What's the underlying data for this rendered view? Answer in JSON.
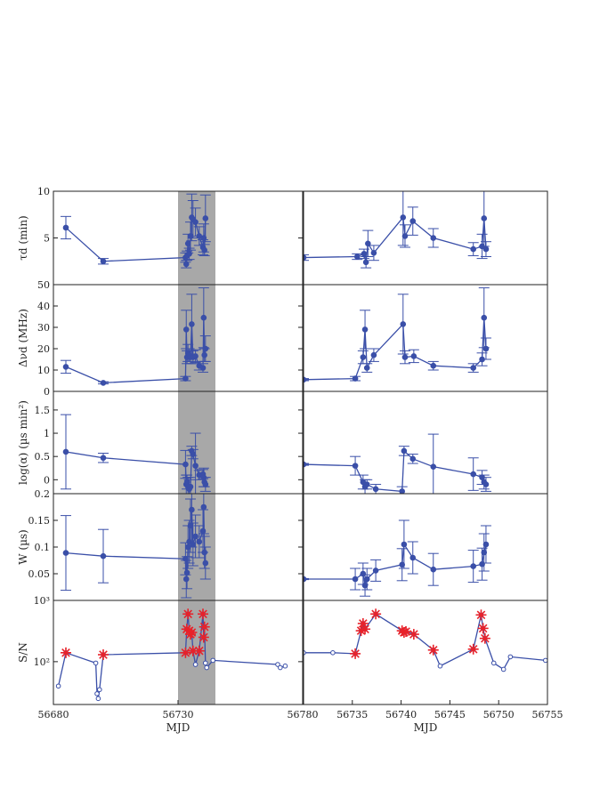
{
  "chart_data": [
    {
      "type": "line",
      "panel": "tau_d",
      "column": "left",
      "ylabel": "τd (min)",
      "ylim": [
        0,
        10
      ],
      "yticks": [
        "5",
        "10"
      ],
      "xlim": [
        56680,
        56780
      ],
      "highlight_x": [
        56730,
        56745
      ],
      "series": [
        {
          "x": [
            56685,
            56700,
            56733,
            56733.3,
            56733.6,
            56734,
            56734.5,
            56735,
            56735.5,
            56736,
            56737,
            56738.5,
            56740,
            56740.3,
            56740.6,
            56741
          ],
          "y": [
            6.1,
            2.5,
            2.9,
            2.2,
            3.1,
            4.4,
            3.3,
            5.2,
            7.2,
            7.0,
            6.7,
            5.2,
            4.0,
            5.0,
            3.7,
            7.1
          ],
          "err": [
            1.2,
            0.3,
            0.5,
            0.4,
            0.5,
            1.0,
            0.6,
            1.5,
            2.5,
            2.0,
            1.5,
            1.0,
            0.8,
            1.5,
            0.6,
            2.5
          ]
        }
      ]
    },
    {
      "type": "line",
      "panel": "delta_nu_d",
      "column": "left",
      "ylabel": "Δνd (MHz)",
      "ylim": [
        0,
        50
      ],
      "yticks": [
        "0",
        "10",
        "20",
        "30",
        "40",
        "50"
      ],
      "xlim": [
        56680,
        56780
      ],
      "series": [
        {
          "x": [
            56685,
            56700,
            56733,
            56733.3,
            56733.6,
            56734,
            56734.5,
            56735,
            56735.5,
            56736,
            56737,
            56738.5,
            56740,
            56740.3,
            56740.6,
            56741
          ],
          "y": [
            11.5,
            4,
            6,
            29,
            16,
            18,
            17,
            16,
            31.5,
            16,
            16.5,
            12,
            11,
            34.5,
            17,
            20
          ],
          "err": [
            3,
            0.5,
            1,
            9,
            3,
            4,
            3,
            3,
            14,
            3,
            3,
            2,
            2,
            14,
            3,
            6
          ]
        }
      ]
    },
    {
      "type": "line",
      "panel": "log_alpha",
      "column": "left",
      "ylabel": "log(α) (µs min²)",
      "ylim": [
        -0.3,
        1.9
      ],
      "yticks": [
        "0",
        "0.5",
        "1",
        "1.5"
      ],
      "xlim": [
        56680,
        56780
      ],
      "series": [
        {
          "x": [
            56685,
            56700,
            56733,
            56733.3,
            56733.6,
            56734,
            56734.5,
            56735,
            56735.5,
            56736,
            56737,
            56738.5,
            56740,
            56740.3,
            56740.6,
            56741
          ],
          "y": [
            0.6,
            0.47,
            0.33,
            -0.1,
            -0.05,
            -0.15,
            -0.2,
            -0.15,
            0.62,
            0.55,
            0.3,
            0.1,
            0.12,
            0.05,
            -0.05,
            -0.1
          ],
          "err": [
            0.8,
            0.1,
            0.3,
            0.2,
            0.15,
            0.2,
            0.2,
            0.2,
            0.1,
            0.1,
            0.7,
            0.1,
            0.1,
            0.2,
            0.1,
            0.15
          ]
        }
      ]
    },
    {
      "type": "line",
      "panel": "W",
      "column": "left",
      "ylabel": "W (µs)",
      "ylim": [
        0,
        0.2
      ],
      "yticks": [
        "0.05",
        "0.1",
        "0.15",
        "0.2"
      ],
      "xlim": [
        56680,
        56780
      ],
      "series": [
        {
          "x": [
            56685,
            56700,
            56733,
            56733.3,
            56733.6,
            56734,
            56734.5,
            56735,
            56735.5,
            56736,
            56737,
            56738.5,
            56740,
            56740.3,
            56740.6,
            56741
          ],
          "y": [
            0.089,
            0.083,
            0.078,
            0.04,
            0.052,
            0.1,
            0.11,
            0.14,
            0.17,
            0.105,
            0.12,
            0.11,
            0.13,
            0.175,
            0.09,
            0.07
          ],
          "err": [
            0.07,
            0.05,
            0.03,
            0.035,
            0.03,
            0.04,
            0.04,
            0.05,
            0.07,
            0.04,
            0.04,
            0.03,
            0.04,
            0.05,
            0.03,
            0.03
          ]
        }
      ]
    },
    {
      "type": "line",
      "panel": "S_N",
      "column": "left",
      "xlabel": "MJD",
      "ylabel": "S/N",
      "ylog": true,
      "ylim": [
        20,
        1000
      ],
      "yticks": [
        "10²",
        "10³"
      ],
      "xlim": [
        56680,
        56780
      ],
      "xticks": [
        "56680",
        "56730",
        "56780"
      ],
      "series": [
        {
          "name": "all",
          "x": [
            56682,
            56685,
            56697,
            56697.5,
            56698,
            56698.5,
            56700,
            56733,
            56733.5,
            56734,
            56734.5,
            56735,
            56735.5,
            56736,
            56737,
            56738.5,
            56740,
            56740.3,
            56740.6,
            56741,
            56741.5,
            56744,
            56770,
            56771,
            56773
          ],
          "y": [
            40,
            140,
            95,
            30,
            25,
            35,
            130,
            140,
            340,
            600,
            320,
            280,
            300,
            150,
            90,
            150,
            600,
            250,
            370,
            95,
            80,
            105,
            90,
            80,
            85
          ]
        },
        {
          "name": "stars",
          "x": [
            56685,
            56700,
            56733,
            56733.5,
            56734,
            56734.5,
            56735,
            56735.5,
            56736,
            56738.5,
            56740,
            56740.3,
            56740.6
          ],
          "y": [
            140,
            130,
            140,
            340,
            600,
            320,
            280,
            300,
            150,
            150,
            600,
            250,
            370
          ]
        }
      ]
    },
    {
      "type": "line",
      "panel": "tau_d",
      "column": "right",
      "ylim": [
        0,
        10
      ],
      "xlim": [
        56730,
        56755
      ],
      "series": [
        {
          "x": [
            56730,
            56735.5,
            56736.2,
            56736.4,
            56736.6,
            56737.2,
            56740.2,
            56740.4,
            56741.2,
            56743.3,
            56747.4,
            56748.3,
            56748.5,
            56748.7
          ],
          "y": [
            2.9,
            3.0,
            3.3,
            2.4,
            4.4,
            3.4,
            7.2,
            5.2,
            6.8,
            5.0,
            3.8,
            4.1,
            7.1,
            3.8
          ],
          "err": [
            0.3,
            0.3,
            0.5,
            0.6,
            1.4,
            0.8,
            3.0,
            1.2,
            1.5,
            1.0,
            0.7,
            1.3,
            3.0,
            0.8
          ]
        }
      ]
    },
    {
      "type": "line",
      "panel": "delta_nu_d",
      "column": "right",
      "ylim": [
        0,
        50
      ],
      "xlim": [
        56730,
        56755
      ],
      "series": [
        {
          "x": [
            56730,
            56735.3,
            56736.1,
            56736.3,
            56736.5,
            56737.2,
            56740.2,
            56740.4,
            56741.3,
            56743.3,
            56747.4,
            56748.3,
            56748.5,
            56748.7
          ],
          "y": [
            5.5,
            6,
            16,
            29,
            11,
            17,
            31.5,
            16,
            16.5,
            12,
            11,
            15,
            34.5,
            20
          ],
          "err": [
            0.5,
            1,
            3,
            9,
            2,
            3,
            14,
            3,
            3,
            2,
            2,
            3,
            14,
            5
          ]
        }
      ]
    },
    {
      "type": "line",
      "panel": "log_alpha",
      "column": "right",
      "ylim": [
        -0.3,
        1.9
      ],
      "xlim": [
        56730,
        56755
      ],
      "series": [
        {
          "x": [
            56730,
            56735.3,
            56736.1,
            56736.3,
            56736.5,
            56737.4,
            56740.1,
            56740.3,
            56741.2,
            56743.3,
            56747.4,
            56748.3,
            56748.5,
            56748.7
          ],
          "y": [
            0.33,
            0.3,
            -0.05,
            -0.15,
            -0.1,
            -0.2,
            -0.25,
            0.62,
            0.45,
            0.28,
            0.12,
            0.05,
            -0.05,
            -0.1
          ],
          "err": [
            0.02,
            0.2,
            0.15,
            0.15,
            0.1,
            0.1,
            0.1,
            0.1,
            0.1,
            0.7,
            0.35,
            0.15,
            0.15,
            0.15
          ]
        }
      ]
    },
    {
      "type": "line",
      "panel": "W",
      "column": "right",
      "ylim": [
        0,
        0.2
      ],
      "xlim": [
        56730,
        56755
      ],
      "series": [
        {
          "x": [
            56730,
            56735.3,
            56736.1,
            56736.3,
            56736.5,
            56737.4,
            56740.1,
            56740.3,
            56741.2,
            56743.3,
            56747.4,
            56748.3,
            56748.5,
            56748.7
          ],
          "y": [
            0.04,
            0.04,
            0.05,
            0.028,
            0.04,
            0.056,
            0.067,
            0.105,
            0.08,
            0.058,
            0.064,
            0.068,
            0.09,
            0.105
          ],
          "err": [
            0.001,
            0.02,
            0.02,
            0.02,
            0.02,
            0.02,
            0.03,
            0.045,
            0.03,
            0.03,
            0.03,
            0.03,
            0.035,
            0.035
          ]
        }
      ]
    },
    {
      "type": "line",
      "panel": "S_N",
      "column": "right",
      "xlabel": "MJD",
      "ylog": true,
      "ylim": [
        20,
        1000
      ],
      "xlim": [
        56730,
        56755
      ],
      "xticks": [
        "56735",
        "56740",
        "56745",
        "56750",
        "56755"
      ],
      "series": [
        {
          "name": "all",
          "x": [
            56730,
            56733,
            56735.3,
            56735.9,
            56736.1,
            56736.3,
            56737.4,
            56740.1,
            56740.3,
            56740.5,
            56741.3,
            56743.3,
            56744,
            56747.4,
            56748.2,
            56748.4,
            56748.6,
            56749.5,
            56750.5,
            56751.2,
            56754.8
          ],
          "y": [
            140,
            140,
            135,
            320,
            420,
            340,
            600,
            320,
            300,
            310,
            280,
            155,
            85,
            160,
            580,
            350,
            240,
            95,
            75,
            120,
            105
          ]
        },
        {
          "name": "stars",
          "x": [
            56735.3,
            56735.9,
            56736.1,
            56736.3,
            56737.4,
            56740.1,
            56740.3,
            56740.5,
            56741.3,
            56743.3,
            56747.4,
            56748.2,
            56748.4,
            56748.6
          ],
          "y": [
            135,
            320,
            420,
            340,
            600,
            320,
            300,
            310,
            280,
            155,
            160,
            580,
            350,
            240
          ]
        }
      ]
    }
  ],
  "colors": {
    "line": "#3a4fa8",
    "star": "#e8222a",
    "shade": "#a8a8a8",
    "frame": "#222222"
  }
}
